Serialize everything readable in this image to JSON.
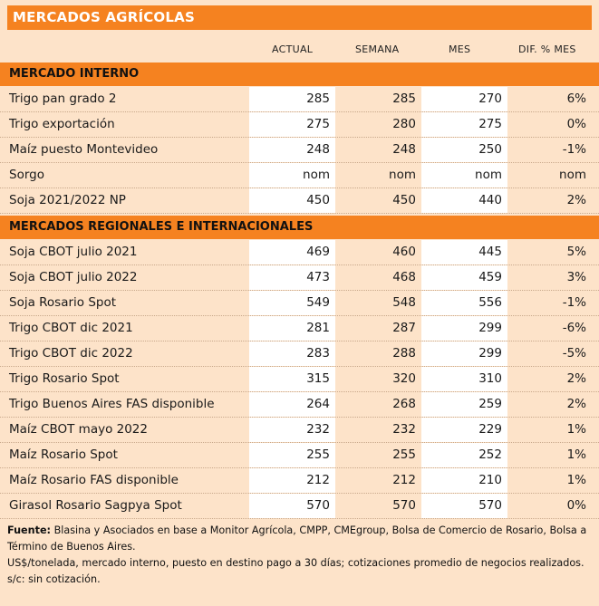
{
  "title": "MERCADOS AGRÍCOLAS",
  "columns": [
    "ACTUAL",
    "SEMANA",
    "MES",
    "DIF. % MES"
  ],
  "sections": [
    {
      "title": "MERCADO INTERNO",
      "rows": [
        {
          "label": "Trigo pan grado 2",
          "actual": "285",
          "semana": "285",
          "mes": "270",
          "dif": "6%"
        },
        {
          "label": "Trigo exportación",
          "actual": "275",
          "semana": "280",
          "mes": "275",
          "dif": "0%"
        },
        {
          "label": "Maíz puesto Montevideo",
          "actual": "248",
          "semana": "248",
          "mes": "250",
          "dif": "-1%"
        },
        {
          "label": "Sorgo",
          "actual": "nom",
          "semana": "nom",
          "mes": "nom",
          "dif": "nom"
        },
        {
          "label": "Soja 2021/2022 NP",
          "actual": "450",
          "semana": "450",
          "mes": "440",
          "dif": "2%"
        }
      ]
    },
    {
      "title": "MERCADOS REGIONALES E INTERNACIONALES",
      "rows": [
        {
          "label": "Soja CBOT julio 2021",
          "actual": "469",
          "semana": "460",
          "mes": "445",
          "dif": "5%"
        },
        {
          "label": "Soja CBOT julio 2022",
          "actual": "473",
          "semana": "468",
          "mes": "459",
          "dif": "3%"
        },
        {
          "label": "Soja Rosario Spot",
          "actual": "549",
          "semana": "548",
          "mes": "556",
          "dif": "-1%"
        },
        {
          "label": "Trigo CBOT dic 2021",
          "actual": "281",
          "semana": "287",
          "mes": "299",
          "dif": "-6%"
        },
        {
          "label": "Trigo CBOT dic 2022",
          "actual": "283",
          "semana": "288",
          "mes": "299",
          "dif": "-5%"
        },
        {
          "label": "Trigo Rosario Spot",
          "actual": "315",
          "semana": "320",
          "mes": "310",
          "dif": "2%"
        },
        {
          "label": "Trigo Buenos Aires FAS disponible",
          "actual": "264",
          "semana": "268",
          "mes": "259",
          "dif": "2%"
        },
        {
          "label": "Maíz CBOT mayo 2022",
          "actual": "232",
          "semana": "232",
          "mes": "229",
          "dif": "1%"
        },
        {
          "label": "Maíz Rosario Spot",
          "actual": "255",
          "semana": "255",
          "mes": "252",
          "dif": "1%"
        },
        {
          "label": "Maíz Rosario FAS disponible",
          "actual": "212",
          "semana": "212",
          "mes": "210",
          "dif": "1%"
        },
        {
          "label": "Girasol Rosario Sagpya Spot",
          "actual": "570",
          "semana": "570",
          "mes": "570",
          "dif": "0%"
        }
      ]
    }
  ],
  "footer": {
    "source_label": "Fuente:",
    "source_text": "Blasina y Asociados en base a Monitor Agrícola, CMPP, CMEgroup, Bolsa de Comercio de Rosario, Bolsa a Término de Buenos Aires.",
    "note1": "US$/tonelada, mercado interno, puesto en destino pago a 30 días; cotizaciones promedio de negocios realizados.",
    "note2": "s/c: sin cotización."
  },
  "colors": {
    "accent": "#f58220",
    "background": "#fde3c9",
    "cell_white": "#ffffff"
  }
}
